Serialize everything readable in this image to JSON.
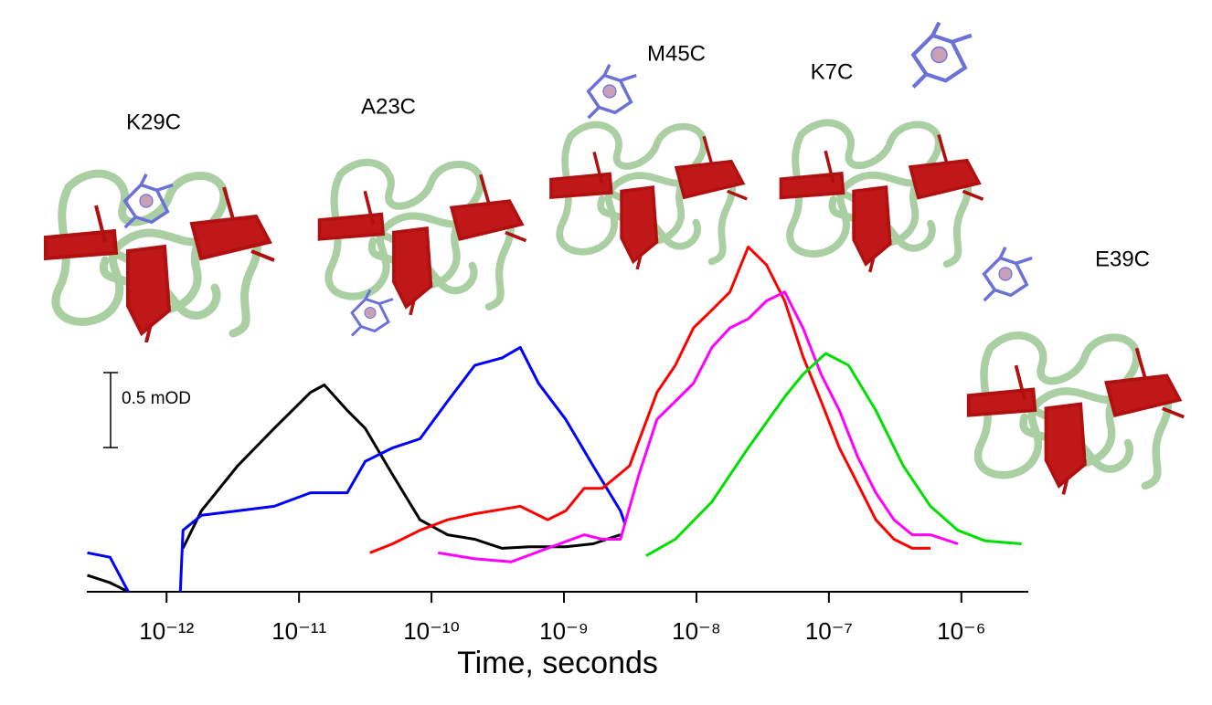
{
  "chart_data": {
    "type": "line",
    "xlabel": "Time, seconds",
    "xscale": "log",
    "xlim": [
      2.5e-13,
      3.2e-06
    ],
    "xticks": [
      {
        "value": 1e-12,
        "label": "10⁻¹²"
      },
      {
        "value": 1e-11,
        "label": "10⁻¹¹"
      },
      {
        "value": 1e-10,
        "label": "10⁻¹⁰"
      },
      {
        "value": 1e-09,
        "label": "10⁻⁹"
      },
      {
        "value": 1e-08,
        "label": "10⁻⁸"
      },
      {
        "value": 1e-07,
        "label": "10⁻⁷"
      },
      {
        "value": 1e-06,
        "label": "10⁻⁶"
      }
    ],
    "ylim": [
      0,
      2.4
    ],
    "scale_bar": {
      "value": 0.5,
      "label": "0.5 mOD"
    },
    "annotations": [
      "K29C",
      "A23C",
      "M45C",
      "K7C",
      "E39C"
    ],
    "series": [
      {
        "color": "#000000",
        "x": [
          2.52e-13,
          3.74e-13,
          5.14e-13,
          null,
          1.33e-12,
          1.83e-12,
          3.44e-12,
          6.49e-12,
          1.22e-11,
          1.55e-11,
          2.31e-11,
          3.16e-11,
          5.09e-11,
          8.19e-11,
          1.32e-10,
          2.12e-10,
          3.41e-10,
          5.48e-10,
          1.03e-09,
          1.66e-09,
          2.67e-09
        ],
        "values": [
          0.11,
          0.06,
          0,
          null,
          0.29,
          0.54,
          0.84,
          1.09,
          1.33,
          1.38,
          1.21,
          1.09,
          0.78,
          0.48,
          0.38,
          0.35,
          0.29,
          0.3,
          0.3,
          0.32,
          0.38
        ]
      },
      {
        "color": "#0000ff",
        "x": [
          2.52e-13,
          3.74e-13,
          5.14e-13,
          null,
          1.27e-12,
          1.33e-12,
          1.83e-12,
          3.44e-12,
          6.49e-12,
          1.22e-11,
          2.31e-11,
          3.16e-11,
          5.09e-11,
          8.19e-11,
          1.32e-10,
          2.12e-10,
          3.41e-10,
          4.68e-10,
          6.43e-10,
          1.03e-09,
          1.66e-09,
          2.67e-09,
          2.9e-09
        ],
        "values": [
          0.26,
          0.23,
          0,
          null,
          0,
          0.41,
          0.51,
          0.54,
          0.57,
          0.66,
          0.66,
          0.87,
          0.96,
          1.02,
          1.27,
          1.51,
          1.56,
          1.63,
          1.39,
          1.15,
          0.84,
          0.54,
          0.45
        ]
      },
      {
        "color": "#ff0000",
        "x": [
          3.43e-11,
          5.09e-11,
          8.19e-11,
          1.32e-10,
          2.12e-10,
          3.41e-10,
          4.68e-10,
          7.53e-10,
          1.03e-09,
          1.42e-09,
          1.95e-09,
          3.13e-09,
          5.04e-09,
          6.92e-09,
          9.5e-09,
          1.31e-08,
          1.79e-08,
          2.46e-08,
          3.38e-08,
          4.64e-08,
          6.37e-08,
          8.74e-08,
          1.2e-07,
          1.65e-07,
          2.26e-07,
          3.1e-07,
          4.26e-07,
          5.85e-07
        ],
        "values": [
          0.26,
          0.32,
          0.41,
          0.48,
          0.52,
          0.55,
          0.57,
          0.48,
          0.54,
          0.69,
          0.69,
          0.84,
          1.33,
          1.51,
          1.76,
          1.88,
          2.0,
          2.3,
          2.18,
          1.94,
          1.57,
          1.27,
          0.96,
          0.72,
          0.48,
          0.35,
          0.29,
          0.29
        ]
      },
      {
        "color": "#ff00ff",
        "x": [
          1.12e-10,
          2.12e-10,
          4e-10,
          7.53e-10,
          1.42e-09,
          1.95e-09,
          2.67e-09,
          3.67e-09,
          5.04e-09,
          6.92e-09,
          9.5e-09,
          1.31e-08,
          1.79e-08,
          2.46e-08,
          3.38e-08,
          4.64e-08,
          6.37e-08,
          8.74e-08,
          1.2e-07,
          1.65e-07,
          2.26e-07,
          3.1e-07,
          4.26e-07,
          5.85e-07,
          9.42e-07
        ],
        "values": [
          0.26,
          0.22,
          0.2,
          0.29,
          0.38,
          0.35,
          0.35,
          0.78,
          1.15,
          1.27,
          1.39,
          1.63,
          1.76,
          1.82,
          1.94,
          2.0,
          1.76,
          1.45,
          1.21,
          0.9,
          0.66,
          0.48,
          0.38,
          0.38,
          0.32
        ]
      },
      {
        "color": "#00e000",
        "x": [
          4.17e-09,
          6.92e-09,
          1.31e-08,
          2.46e-08,
          4.64e-08,
          6.37e-08,
          9.46e-08,
          1.41e-07,
          2.26e-07,
          3.64e-07,
          5.85e-07,
          9.42e-07,
          1.51e-06,
          2.85e-06
        ],
        "values": [
          0.24,
          0.35,
          0.6,
          0.96,
          1.3,
          1.45,
          1.59,
          1.51,
          1.21,
          0.84,
          0.57,
          0.41,
          0.34,
          0.32
        ]
      }
    ]
  }
}
